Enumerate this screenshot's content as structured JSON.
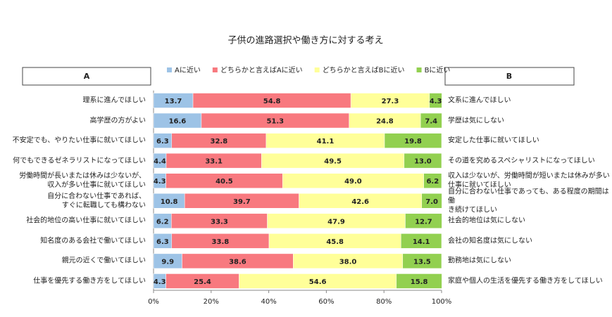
{
  "chart_data": {
    "type": "stacked-bar-horizontal",
    "title": "子供の進路選択や働き方に対する考え",
    "header_a": "A",
    "header_b": "B",
    "categories": [
      "理系に進んでほしい",
      "高学歴の方がよい",
      "不安定でも、やりたい仕事に就いてほしい",
      "何でもできるゼネラリストになってほしい",
      "労働時間が長いまたは休みは少ないが、\n収入が多い仕事に就いてほしい",
      "自分に合わない仕事であれば、\nすぐに転職しても構わない",
      "社会的地位の高い仕事に就いてほしい",
      "知名度のある会社で働いてほしい",
      "親元の近くで働いてほしい",
      "仕事を優先する働き方をしてほしい"
    ],
    "right_labels": [
      "文系に進んでほしい",
      "学歴は気にしない",
      "安定した仕事に就いてほしい",
      "その道を究めるスペシャリストになってほしい",
      "収入は少ないが、労働時間が短いまたは休みが多い\n仕事に就いてほしい",
      "自分に合わない仕事であっても、ある程度の期間は働\nき続けてほしい",
      "社会的地位は気にしない",
      "会社の知名度は気にしない",
      "勤務地は気にしない",
      "家庭や個人の生活を優先する働き方をしてほしい"
    ],
    "series": [
      {
        "name": "Aに近い",
        "color": "#9dc3e6",
        "values": [
          13.7,
          16.6,
          6.3,
          4.4,
          4.3,
          10.8,
          6.2,
          6.3,
          9.9,
          4.3
        ],
        "value_labels": [
          "13.7",
          "16.6",
          "6.3",
          "4.4",
          "4.3",
          "10.8",
          "6.2",
          "6.3",
          "9.9",
          "4.3"
        ]
      },
      {
        "name": "どちらかと言えばAに近い",
        "color": "#f8797f",
        "values": [
          54.8,
          51.3,
          32.8,
          33.1,
          40.5,
          39.7,
          33.3,
          33.8,
          38.6,
          25.4
        ],
        "value_labels": [
          "54.8",
          "51.3",
          "32.8",
          "33.1",
          "40.5",
          "39.7",
          "33.3",
          "33.8",
          "38.6",
          "25.4"
        ]
      },
      {
        "name": "どちらかと言えばBに近い",
        "color": "#ffff99",
        "values": [
          27.3,
          24.8,
          41.1,
          49.5,
          49.0,
          42.6,
          47.9,
          45.8,
          38.0,
          54.6
        ],
        "value_labels": [
          "27.3",
          "24.8",
          "41.1",
          "49.5",
          "49.0",
          "42.6",
          "47.9",
          "45.8",
          "38.0",
          "54.6"
        ]
      },
      {
        "name": "Bに近い",
        "color": "#92d050",
        "values": [
          4.3,
          7.4,
          19.8,
          13.0,
          6.2,
          7.0,
          12.7,
          14.1,
          13.5,
          15.8
        ],
        "value_labels": [
          "4.3",
          "7.4",
          "19.8",
          "13.0",
          "6.2",
          "7.0",
          "12.7",
          "14.1",
          "13.5",
          "15.8"
        ]
      }
    ],
    "xlim": [
      0,
      100
    ],
    "xticks": [
      {
        "value": 0,
        "label": "0%"
      },
      {
        "value": 20,
        "label": "20%"
      },
      {
        "value": 40,
        "label": "40%"
      },
      {
        "value": 60,
        "label": "60%"
      },
      {
        "value": 80,
        "label": "80%"
      },
      {
        "value": 100,
        "label": "100%"
      }
    ]
  }
}
